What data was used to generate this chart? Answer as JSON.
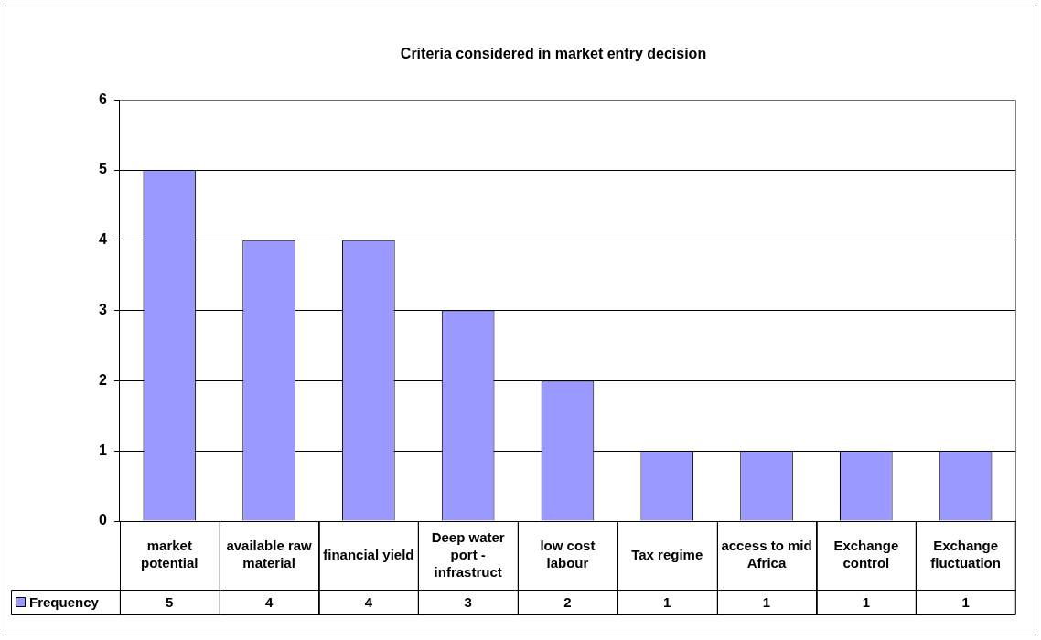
{
  "chart_data": {
    "type": "bar",
    "title": "Criteria considered in market entry decision",
    "categories": [
      "market potential",
      "available raw material",
      "financial yield",
      "Deep water port - infrastruct",
      "low cost labour",
      "Tax regime",
      "access to mid Africa",
      "Exchange control",
      "Exchange fluctuation"
    ],
    "series": [
      {
        "name": "Frequency",
        "color": "#9999ff",
        "values": [
          5,
          4,
          4,
          3,
          2,
          1,
          1,
          1,
          1
        ]
      }
    ],
    "ylim": [
      0,
      6
    ],
    "yticks": [
      0,
      1,
      2,
      3,
      4,
      5,
      6
    ],
    "grid": "y",
    "legend": "bottom",
    "data_labels": true
  }
}
